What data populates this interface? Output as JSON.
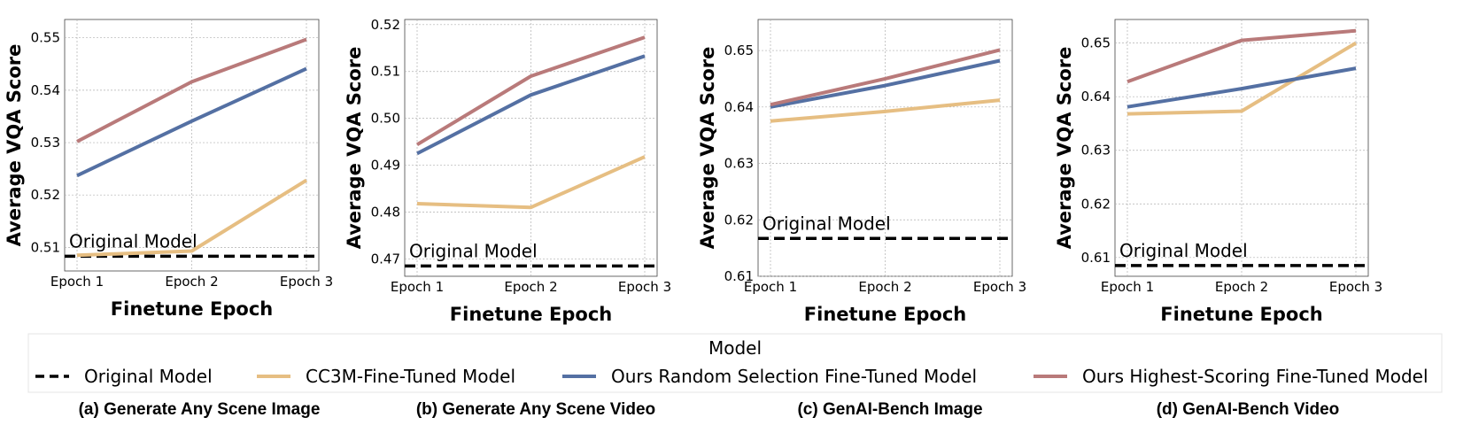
{
  "colors": {
    "original": "#000000",
    "cc3m": "#e6be82",
    "random": "#5470a3",
    "highest": "#b97a7a",
    "grid": "#b0b0b0"
  },
  "legend": {
    "title": "Model",
    "entries": [
      {
        "key": "original",
        "label": "Original Model",
        "dashed": true
      },
      {
        "key": "cc3m",
        "label": "CC3M-Fine-Tuned Model",
        "dashed": false
      },
      {
        "key": "random",
        "label": "Ours Random Selection Fine-Tuned Model",
        "dashed": false
      },
      {
        "key": "highest",
        "label": "Ours Highest-Scoring Fine-Tuned Model",
        "dashed": false
      }
    ]
  },
  "chart_data": [
    {
      "type": "line",
      "caption": "(a) Generate Any Scene Image",
      "xlabel": "Finetune Epoch",
      "ylabel": "Average VQA Score",
      "categories": [
        "Epoch 1",
        "Epoch 2",
        "Epoch 3"
      ],
      "yticks": [
        0.51,
        0.52,
        0.53,
        0.54,
        0.55
      ],
      "ylim": [
        0.5055,
        0.5535
      ],
      "grid": true,
      "baseline": {
        "name": "Original Model",
        "value": 0.5083
      },
      "series": [
        {
          "key": "cc3m",
          "name": "CC3M-Fine-Tuned Model",
          "values": [
            0.5085,
            0.5093,
            0.5228
          ]
        },
        {
          "key": "random",
          "name": "Ours Random Selection Fine-Tuned Model",
          "values": [
            0.5237,
            0.5341,
            0.5441
          ]
        },
        {
          "key": "highest",
          "name": "Ours Highest-Scoring Fine-Tuned Model",
          "values": [
            0.5302,
            0.5416,
            0.5497
          ]
        }
      ]
    },
    {
      "type": "line",
      "caption": "(b) Generate Any Scene Video",
      "xlabel": "Finetune Epoch",
      "ylabel": "Average VQA Score",
      "categories": [
        "Epoch 1",
        "Epoch 2",
        "Epoch 3"
      ],
      "yticks": [
        0.47,
        0.48,
        0.49,
        0.5,
        0.51,
        0.52
      ],
      "ylim": [
        0.4663,
        0.5211
      ],
      "grid": true,
      "baseline": {
        "name": "Original Model",
        "value": 0.4685
      },
      "series": [
        {
          "key": "cc3m",
          "name": "CC3M-Fine-Tuned Model",
          "values": [
            0.4818,
            0.481,
            0.4918
          ]
        },
        {
          "key": "random",
          "name": "Ours Random Selection Fine-Tuned Model",
          "values": [
            0.4925,
            0.505,
            0.5133
          ]
        },
        {
          "key": "highest",
          "name": "Ours Highest-Scoring Fine-Tuned Model",
          "values": [
            0.4944,
            0.509,
            0.5173
          ]
        }
      ]
    },
    {
      "type": "line",
      "caption": "(c) GenAI-Bench Image",
      "xlabel": "Finetune Epoch",
      "ylabel": "Average VQA Score",
      "categories": [
        "Epoch 1",
        "Epoch 2",
        "Epoch 3"
      ],
      "yticks": [
        0.61,
        0.62,
        0.63,
        0.64,
        0.65
      ],
      "ylim": [
        0.61,
        0.6555
      ],
      "grid": true,
      "baseline": {
        "name": "Original Model",
        "value": 0.6167
      },
      "series": [
        {
          "key": "cc3m",
          "name": "CC3M-Fine-Tuned Model",
          "values": [
            0.6375,
            0.6392,
            0.6412
          ]
        },
        {
          "key": "random",
          "name": "Ours Random Selection Fine-Tuned Model",
          "values": [
            0.64,
            0.6438,
            0.6482
          ]
        },
        {
          "key": "highest",
          "name": "Ours Highest-Scoring Fine-Tuned Model",
          "values": [
            0.6404,
            0.645,
            0.6501
          ]
        }
      ]
    },
    {
      "type": "line",
      "caption": "(d) GenAI-Bench Video",
      "xlabel": "Finetune Epoch",
      "ylabel": "Average VQA Score",
      "categories": [
        "Epoch 1",
        "Epoch 2",
        "Epoch 3"
      ],
      "yticks": [
        0.61,
        0.62,
        0.63,
        0.64,
        0.65
      ],
      "ylim": [
        0.6065,
        0.6544
      ],
      "grid": true,
      "baseline": {
        "name": "Original Model",
        "value": 0.6085
      },
      "series": [
        {
          "key": "cc3m",
          "name": "CC3M-Fine-Tuned Model",
          "values": [
            0.6368,
            0.6373,
            0.65
          ]
        },
        {
          "key": "random",
          "name": "Ours Random Selection Fine-Tuned Model",
          "values": [
            0.6381,
            0.6415,
            0.6453
          ]
        },
        {
          "key": "highest",
          "name": "Ours Highest-Scoring Fine-Tuned Model",
          "values": [
            0.6428,
            0.6505,
            0.6523
          ]
        }
      ]
    }
  ]
}
